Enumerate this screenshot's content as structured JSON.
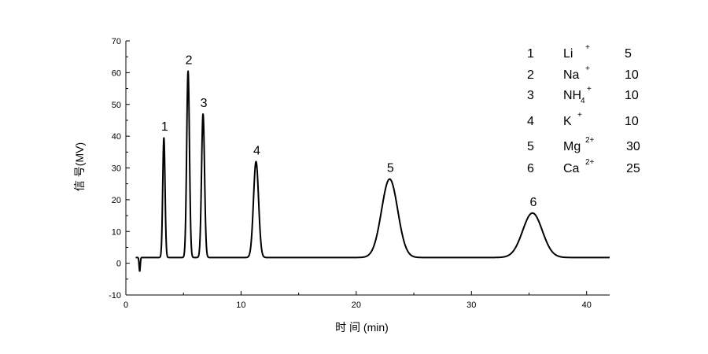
{
  "chart_data": {
    "type": "line",
    "title": "",
    "xlabel": "时 间  (min)",
    "ylabel": "信 号(MV)",
    "xlim": [
      0,
      42
    ],
    "ylim": [
      -10,
      70
    ],
    "x_ticks": [
      0,
      10,
      20,
      30,
      40
    ],
    "y_ticks": [
      -10,
      0,
      10,
      20,
      30,
      40,
      50,
      60,
      70
    ],
    "grid": false,
    "baseline": 1.8,
    "dip": {
      "x": 1.2,
      "y": -2.5
    },
    "series": [
      {
        "peaks": [
          {
            "label": "1",
            "x": 3.3,
            "y": 39.5,
            "sigma": 0.1
          },
          {
            "label": "2",
            "x": 5.4,
            "y": 60.5,
            "sigma": 0.12
          },
          {
            "label": "3",
            "x": 6.7,
            "y": 47,
            "sigma": 0.13
          },
          {
            "label": "4",
            "x": 11.3,
            "y": 32,
            "sigma": 0.22
          },
          {
            "label": "5",
            "x": 22.9,
            "y": 26.5,
            "sigma": 0.7
          },
          {
            "label": "6",
            "x": 35.3,
            "y": 15.8,
            "sigma": 0.85
          }
        ]
      }
    ],
    "legend": {
      "placement": "top-right",
      "rows": [
        {
          "num": "1",
          "ion": "Li",
          "sub": "",
          "charge": "+",
          "value": "5"
        },
        {
          "num": "2",
          "ion": "Na",
          "sub": "",
          "charge": "+",
          "value": "10"
        },
        {
          "num": "3",
          "ion": "NH",
          "sub": "4",
          "charge": "+",
          "value": "10"
        },
        {
          "num": "4",
          "ion": "K",
          "sub": "",
          "charge": "+",
          "value": "10"
        },
        {
          "num": "5",
          "ion": "Mg",
          "sub": "",
          "charge": "2+",
          "value": "30"
        },
        {
          "num": "6",
          "ion": "Ca",
          "sub": "",
          "charge": "2+",
          "value": "25"
        }
      ]
    }
  }
}
